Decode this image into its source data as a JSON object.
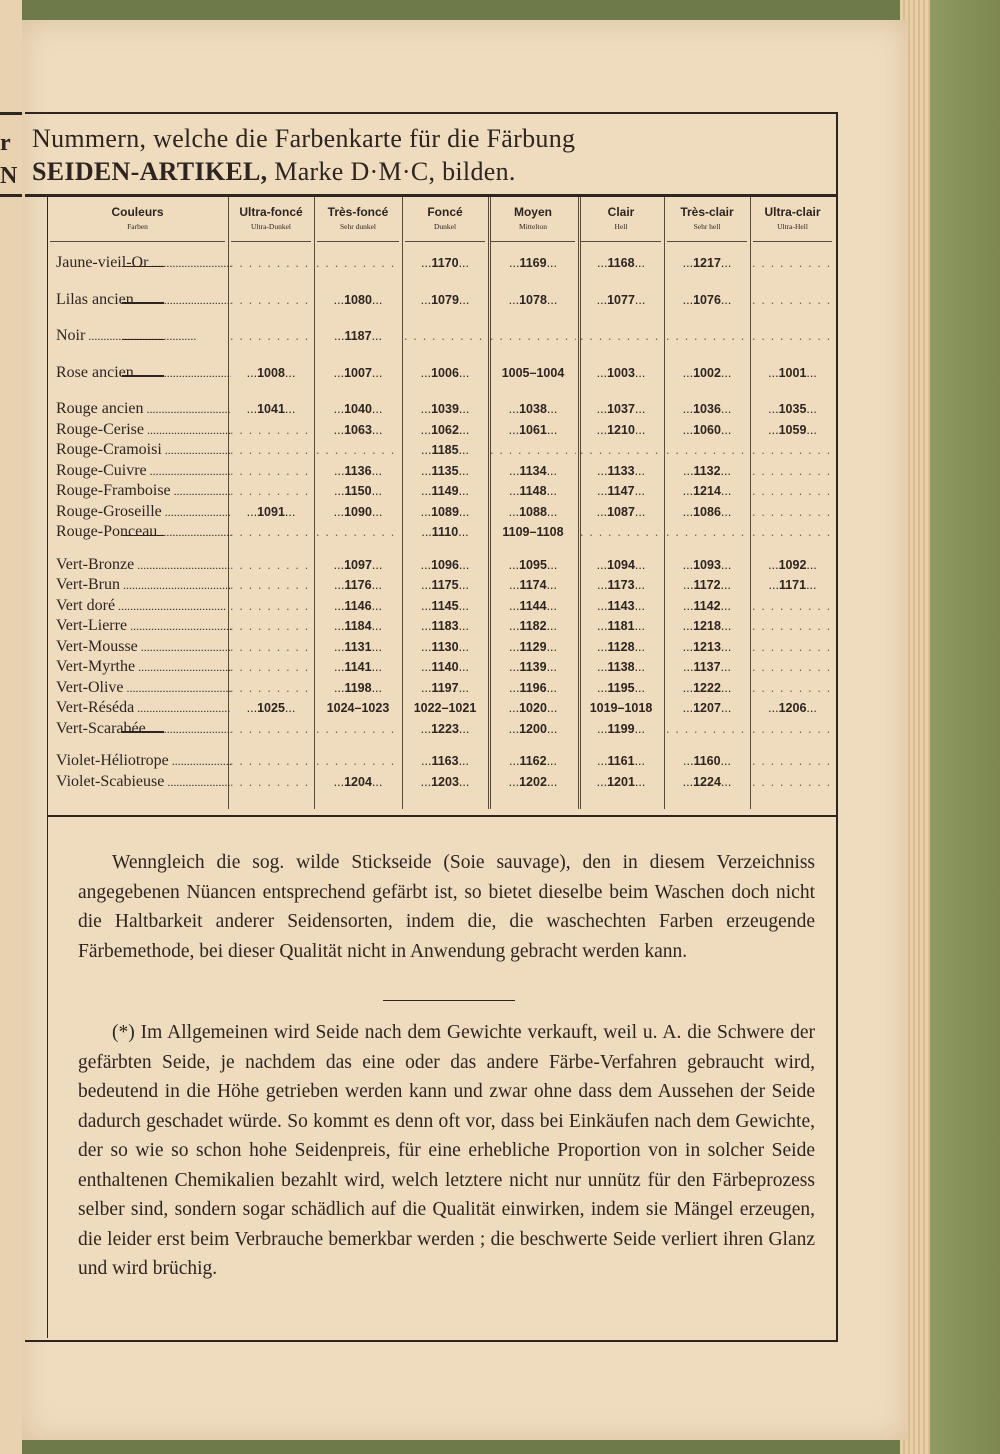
{
  "left_page_fragments": [
    "r",
    "N"
  ],
  "title": {
    "line1": "Nummern, welche die Farbenkarte für die Färbung",
    "line2_bold": "SEIDEN-ARTIKEL,",
    "line2_rest": " Marke D·M·C, bilden."
  },
  "table": {
    "columns": [
      {
        "fr": "Couleurs",
        "de": "Farben"
      },
      {
        "fr": "Ultra-foncé",
        "de": "Ultra-Dunkel"
      },
      {
        "fr": "Très-foncé",
        "de": "Sehr dunkel"
      },
      {
        "fr": "Foncé",
        "de": "Dunkel"
      },
      {
        "fr": "Moyen",
        "de": "Mittelton"
      },
      {
        "fr": "Clair",
        "de": "Hell"
      },
      {
        "fr": "Très-clair",
        "de": "Sehr hell"
      },
      {
        "fr": "Ultra-clair",
        "de": "Ultra-Hell"
      }
    ],
    "groups": [
      [
        {
          "name": "Jaune-vieil-Or",
          "values": [
            "",
            "",
            "1170",
            "1169",
            "1168",
            "1217",
            ""
          ]
        }
      ],
      [
        {
          "name": "Lilas ancien",
          "values": [
            "",
            "1080",
            "1079",
            "1078",
            "1077",
            "1076",
            ""
          ]
        }
      ],
      [
        {
          "name": "Noir",
          "values": [
            "",
            "1187",
            "",
            "",
            "",
            "",
            ""
          ]
        }
      ],
      [
        {
          "name": "Rose ancien",
          "values": [
            "1008",
            "1007",
            "1006",
            "1005–1004",
            "1003",
            "1002",
            "1001"
          ]
        }
      ],
      [
        {
          "name": "Rouge ancien",
          "values": [
            "1041",
            "1040",
            "1039",
            "1038",
            "1037",
            "1036",
            "1035"
          ]
        },
        {
          "name": "Rouge-Cerise",
          "values": [
            "",
            "1063",
            "1062",
            "1061",
            "1210",
            "1060",
            "1059"
          ]
        },
        {
          "name": "Rouge-Cramoisi",
          "values": [
            "",
            "",
            "1185",
            "",
            "",
            "",
            ""
          ]
        },
        {
          "name": "Rouge-Cuivre",
          "values": [
            "",
            "1136",
            "1135",
            "1134",
            "1133",
            "1132",
            ""
          ]
        },
        {
          "name": "Rouge-Framboise",
          "values": [
            "",
            "1150",
            "1149",
            "1148",
            "1147",
            "1214",
            ""
          ]
        },
        {
          "name": "Rouge-Groseille",
          "values": [
            "1091",
            "1090",
            "1089",
            "1088",
            "1087",
            "1086",
            ""
          ]
        },
        {
          "name": "Rouge-Ponceau",
          "values": [
            "",
            "",
            "1110",
            "1109–1108",
            "",
            "",
            ""
          ]
        }
      ],
      [
        {
          "name": "Vert-Bronze",
          "values": [
            "",
            "1097",
            "1096",
            "1095",
            "1094",
            "1093",
            "1092"
          ]
        },
        {
          "name": "Vert-Brun",
          "values": [
            "",
            "1176",
            "1175",
            "1174",
            "1173",
            "1172",
            "1171"
          ]
        },
        {
          "name": "Vert doré",
          "values": [
            "",
            "1146",
            "1145",
            "1144",
            "1143",
            "1142",
            ""
          ]
        },
        {
          "name": "Vert-Lierre",
          "values": [
            "",
            "1184",
            "1183",
            "1182",
            "1181",
            "1218",
            ""
          ]
        },
        {
          "name": "Vert-Mousse",
          "values": [
            "",
            "1131",
            "1130",
            "1129",
            "1128",
            "1213",
            ""
          ]
        },
        {
          "name": "Vert-Myrthe",
          "values": [
            "",
            "1141",
            "1140",
            "1139",
            "1138",
            "1137",
            ""
          ]
        },
        {
          "name": "Vert-Olive",
          "values": [
            "",
            "1198",
            "1197",
            "1196",
            "1195",
            "1222",
            ""
          ]
        },
        {
          "name": "Vert-Réséda",
          "values": [
            "1025",
            "1024–1023",
            "1022–1021",
            "1020",
            "1019–1018",
            "1207",
            "1206"
          ]
        },
        {
          "name": "Vert-Scarabée",
          "values": [
            "",
            "",
            "1223",
            "1200",
            "1199",
            "",
            ""
          ]
        }
      ],
      [
        {
          "name": "Violet-Héliotrope",
          "values": [
            "",
            "",
            "1163",
            "1162",
            "1161",
            "1160",
            ""
          ]
        },
        {
          "name": "Violet-Scabieuse",
          "values": [
            "",
            "1204",
            "1203",
            "1202",
            "1201",
            "1224",
            ""
          ]
        }
      ]
    ]
  },
  "paragraphs": [
    "Wenngleich die sog. wilde Stickseide (Soie sauvage), den in diesem Verzeichniss angegebenen Nüancen entsprechend gefärbt ist, so bietet dieselbe beim Waschen doch nicht die Haltbarkeit anderer Seidensorten, indem die, die waschechten Farben erzeugende Färbemethode, bei dieser Qualität nicht in Anwendung gebracht werden kann.",
    "(*) Im Allgemeinen wird Seide nach dem Gewichte verkauft, weil u. A. die Schwere der gefärbten Seide, je nachdem das eine oder das andere Färbe-Verfahren gebraucht wird, bedeutend in die Höhe getrieben werden kann und zwar ohne dass dem Aussehen der Seide dadurch geschadet würde. So kommt es denn oft vor, dass bei Einkäufen nach dem Gewichte, der so wie so schon hohe Seidenpreis, für eine erhebliche Proportion von in solcher Seide enthaltenen Chemikalien bezahlt wird, welch letztere nicht nur unnütz für den Färbeprozess selber sind, sondern sogar schädlich auf die Qualität einwirken, indem sie Mängel erzeugen, die leider erst beim Verbrauche bemerkbar werden ; die beschwerte Seide verliert ihren Glanz und wird brüchig."
  ]
}
